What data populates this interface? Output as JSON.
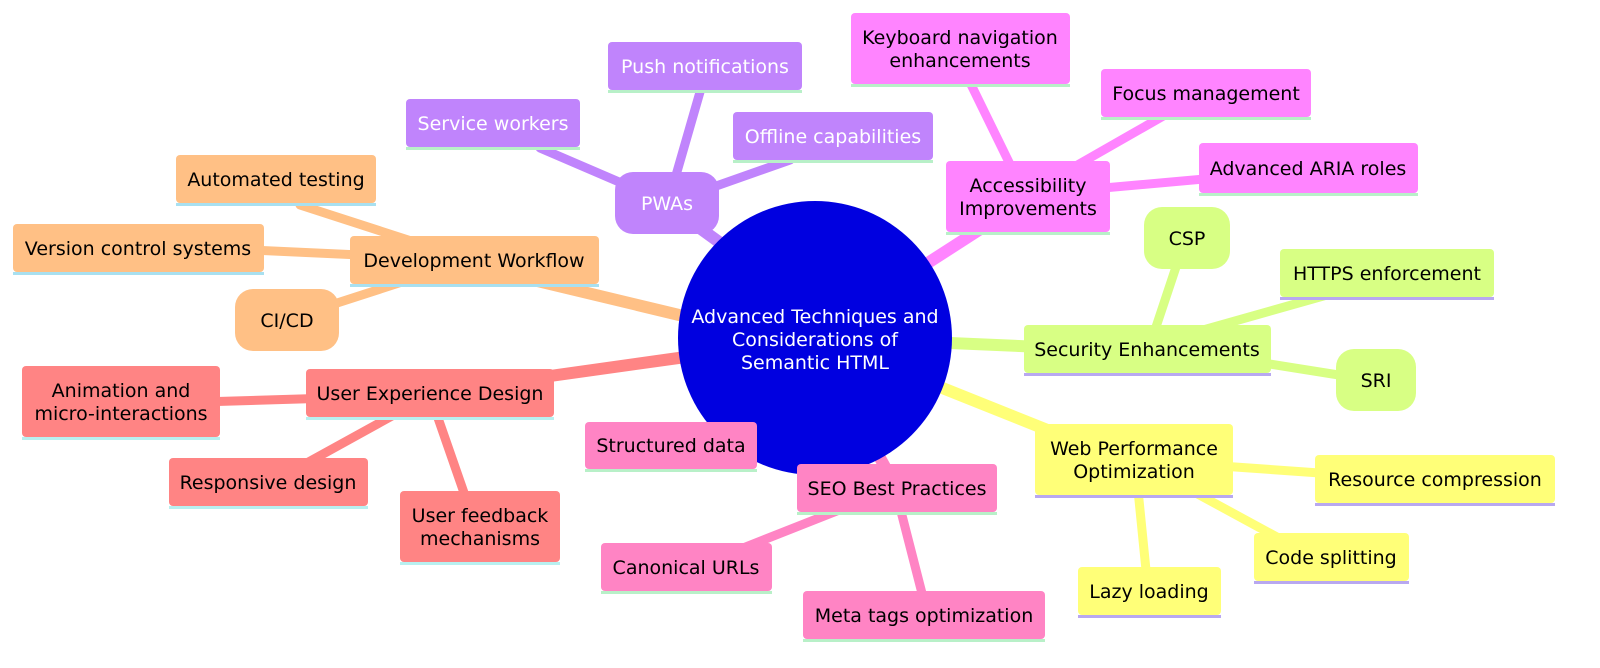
{
  "center": {
    "line1": "Advanced Techniques and",
    "line2": "Considerations of",
    "line3": "Semantic HTML",
    "color": "#0000e0"
  },
  "colors": {
    "pwa": "#c084fc",
    "dev": "#ffc085",
    "ux": "#ff8484",
    "seo": "#ff84c4",
    "perf": "#ffff78",
    "sec": "#d8ff84",
    "a11y": "#ff84ff"
  },
  "branches": {
    "pwas": {
      "label": "PWAs",
      "children": {
        "service_workers": "Service workers",
        "push_notifications": "Push notifications",
        "offline_capabilities": "Offline capabilities"
      }
    },
    "development_workflow": {
      "label": "Development Workflow",
      "children": {
        "automated_testing": "Automated testing",
        "version_control": "Version control systems",
        "cicd": "CI/CD"
      }
    },
    "user_experience": {
      "label": "User Experience Design",
      "children": {
        "animation_line1": "Animation and",
        "animation_line2": "micro-interactions",
        "responsive_design": "Responsive design",
        "feedback_line1": "User feedback",
        "feedback_line2": "mechanisms"
      }
    },
    "seo": {
      "label": "SEO Best Practices",
      "children": {
        "structured_data": "Structured data",
        "canonical_urls": "Canonical URLs",
        "meta_tags": "Meta tags optimization"
      }
    },
    "web_performance": {
      "label_line1": "Web Performance",
      "label_line2": "Optimization",
      "children": {
        "resource_compression": "Resource compression",
        "code_splitting": "Code splitting",
        "lazy_loading": "Lazy loading"
      }
    },
    "security": {
      "label": "Security Enhancements",
      "children": {
        "csp": "CSP",
        "https": "HTTPS enforcement",
        "sri": "SRI"
      }
    },
    "accessibility": {
      "label_line1": "Accessibility",
      "label_line2": "Improvements",
      "children": {
        "keyboard_line1": "Keyboard navigation",
        "keyboard_line2": "enhancements",
        "focus_management": "Focus management",
        "aria_roles": "Advanced ARIA roles"
      }
    }
  }
}
